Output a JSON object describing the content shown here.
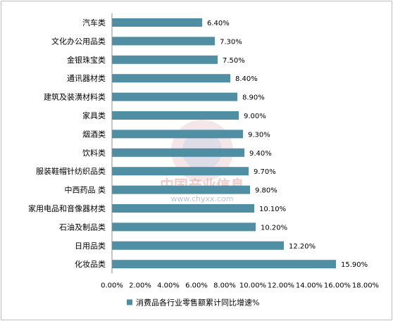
{
  "chart_data": {
    "type": "bar",
    "orientation": "horizontal",
    "categories": [
      "汽车类",
      "文化办公用品类",
      "金银珠宝类",
      "通讯器材类",
      "建筑及装潢材料类",
      "家具类",
      "烟酒类",
      "饮料类",
      "服装鞋帽针纺织品类",
      "中西药品 类",
      "家用电品和音像器材类",
      "石油及制品类",
      "日用品类",
      "化妆品类"
    ],
    "series": [
      {
        "name": "消费品各行业零售额累计同比增速%",
        "values": [
          6.4,
          7.3,
          7.5,
          8.4,
          8.9,
          9.0,
          9.3,
          9.4,
          9.7,
          9.8,
          10.1,
          10.2,
          12.2,
          15.9
        ],
        "labels": [
          "6.40%",
          "7.30%",
          "7.50%",
          "8.40%",
          "8.90%",
          "9.00%",
          "9.30%",
          "9.40%",
          "9.70%",
          "9.80%",
          "10.10%",
          "10.20%",
          "12.20%",
          "15.90%"
        ],
        "color": "#4f8ea3"
      }
    ],
    "xlim": [
      0,
      18
    ],
    "xticks": [
      "0.00%",
      "2.00%",
      "4.00%",
      "6.00%",
      "8.00%",
      "10.00%",
      "12.00%",
      "14.00%",
      "16.00%",
      "18.00%"
    ],
    "title": "",
    "xlabel": "",
    "ylabel": "",
    "grid": false,
    "legend": "bottom"
  },
  "watermark": {
    "name": "中国产业信息",
    "url": "www.chyxx.com"
  }
}
